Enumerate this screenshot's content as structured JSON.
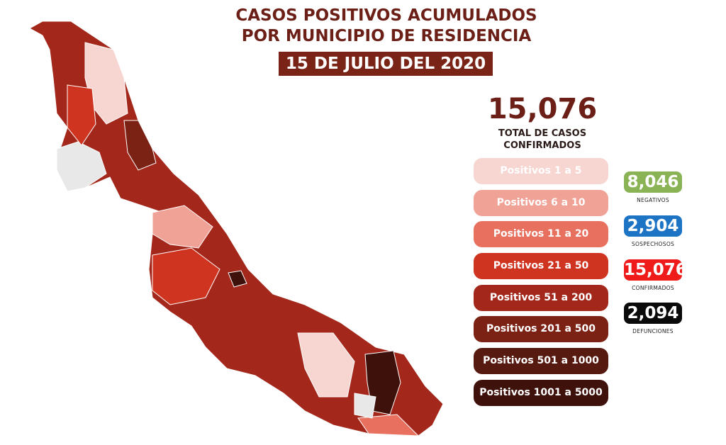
{
  "header": {
    "title_line1": "CASOS POSITIVOS ACUMULADOS",
    "title_line2": "POR MUNICIPIO DE RESIDENCIA",
    "date": "15 DE JULIO DEL 2020"
  },
  "summary": {
    "total": "15,076",
    "total_label_line1": "TOTAL DE CASOS",
    "total_label_line2": "CONFIRMADOS"
  },
  "legend": [
    {
      "label": "Positivos 1 a 5",
      "color": "#f7d6d2",
      "text_color": "#ffffff"
    },
    {
      "label": "Positivos 6 a 10",
      "color": "#f0a296"
    },
    {
      "label": "Positivos 11 a 20",
      "color": "#e8705f"
    },
    {
      "label": "Positivos 21 a 50",
      "color": "#cf3421"
    },
    {
      "label": "Positivos 51 a 200",
      "color": "#a3271a"
    },
    {
      "label": "Positivos 201 a 500",
      "color": "#7b2214"
    },
    {
      "label": "Positivos 501 a 1000",
      "color": "#571a10"
    },
    {
      "label": "Positivos 1001 a 5000",
      "color": "#3f110b"
    }
  ],
  "stats": [
    {
      "value": "8,046",
      "label": "NEGATIVOS",
      "color": "#8ab356"
    },
    {
      "value": "2,904",
      "label": "SOSPECHOSOS",
      "color": "#1e74c4"
    },
    {
      "value": "15,076",
      "label": "CONFIRMADOS",
      "color": "#ef1b1b"
    },
    {
      "value": "2,094",
      "label": "DEFUNCIONES",
      "color": "#0a0a0a"
    }
  ],
  "map": {
    "no_data_color": "#e8e8e8"
  }
}
